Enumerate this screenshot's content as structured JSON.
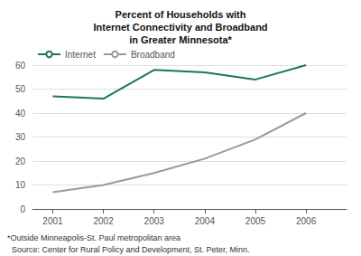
{
  "chart_data": {
    "type": "line",
    "title": "Percent of Households with\nInternet Connectivity and Broadband\nin Greater Minnesota*",
    "x": [
      2001,
      2002,
      2003,
      2004,
      2005,
      2006
    ],
    "series": [
      {
        "name": "Internet",
        "color": "#1a7a4a",
        "values": [
          47,
          46,
          58,
          57,
          54,
          60
        ]
      },
      {
        "name": "Broadband",
        "color": "#999999",
        "values": [
          7,
          10,
          15,
          21,
          29,
          40
        ]
      }
    ],
    "xlim": [
      2000.6,
      2006.8
    ],
    "xticks": [
      2001,
      2002,
      2003,
      2004,
      2005,
      2006
    ],
    "ylim": [
      0,
      60
    ],
    "yticks": [
      0,
      10,
      20,
      30,
      40,
      50,
      60
    ],
    "grid": true,
    "legend": "upper left",
    "annotations": [
      "*Outside Minneapolis-St. Paul metropolitan area",
      "  Source: Center for Rural Policy and Development, St. Peter, Minn."
    ]
  }
}
